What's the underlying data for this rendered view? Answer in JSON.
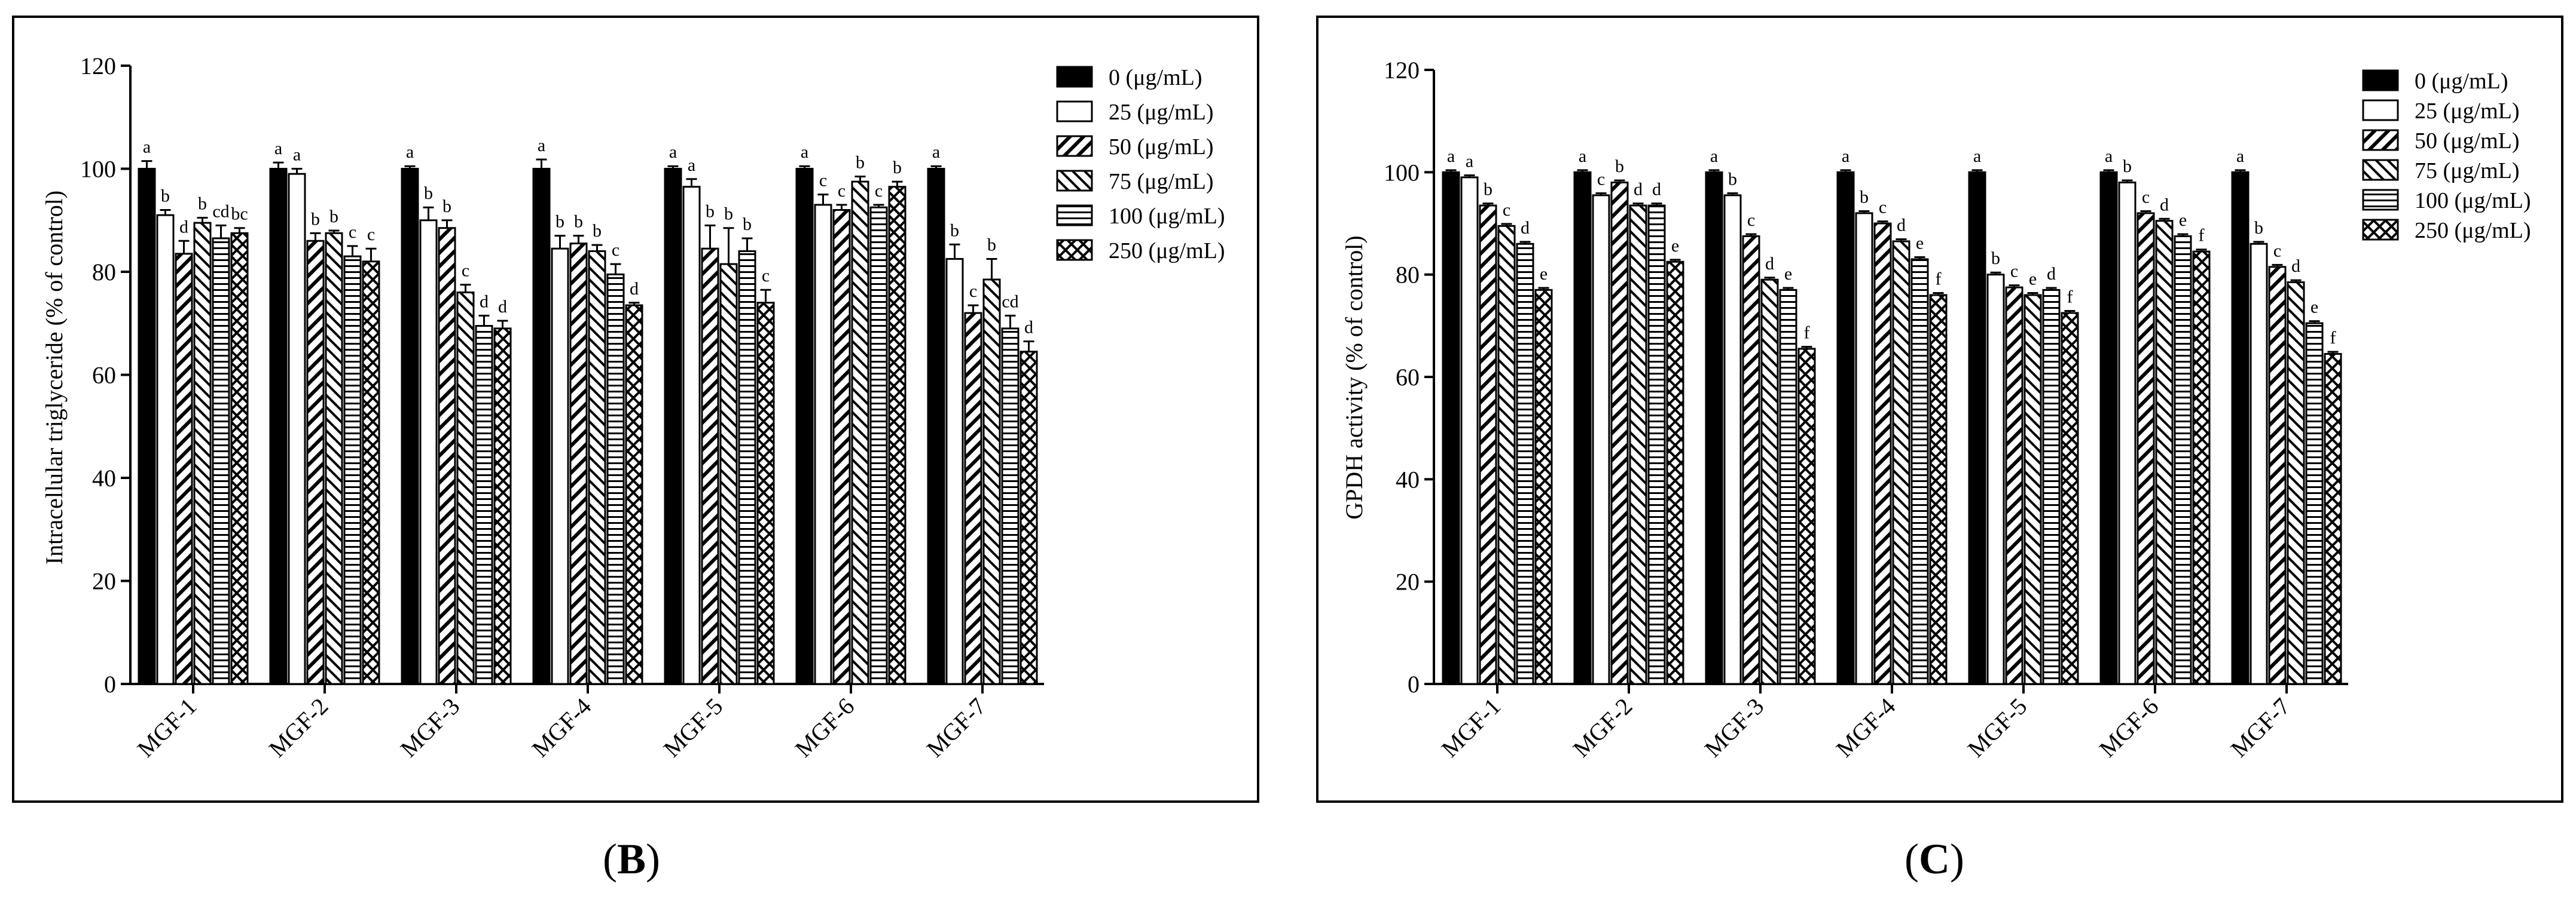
{
  "figure": {
    "background": "#ffffff",
    "ink": "#000000"
  },
  "chart_data": [
    {
      "type": "bar",
      "panel_label": "(B)",
      "panel_letter": "B",
      "ylabel": "Intracellular triglyceride (% of control)",
      "xlabel": "",
      "ylim": [
        0,
        120
      ],
      "yticks": [
        0,
        20,
        40,
        60,
        80,
        100,
        120
      ],
      "grid": false,
      "legend_position": "top-right",
      "categories": [
        "MGF-1",
        "MGF-2",
        "MGF-3",
        "MGF-4",
        "MGF-5",
        "MGF-6",
        "MGF-7"
      ],
      "series": [
        {
          "name": "0 (μg/mL)",
          "pattern": "solid",
          "values": [
            100,
            100,
            100,
            100,
            100,
            100,
            100
          ],
          "errors": [
            1.5,
            1.2,
            0.5,
            1.8,
            0.5,
            0.5,
            0.5
          ],
          "letters": [
            "a",
            "a",
            "a",
            "a",
            "a",
            "a",
            "a"
          ]
        },
        {
          "name": "25 (μg/mL)",
          "pattern": "open",
          "values": [
            91,
            99,
            90,
            84.5,
            96.5,
            93,
            82.5
          ],
          "errors": [
            1.0,
            1.0,
            2.5,
            2.5,
            1.5,
            2.0,
            2.8
          ],
          "letters": [
            "b",
            "a",
            "b",
            "b",
            "a",
            "c",
            "b"
          ]
        },
        {
          "name": "50 (μg/mL)",
          "pattern": "wide-diagonal",
          "values": [
            83.5,
            86,
            88.5,
            85.5,
            84.5,
            92,
            72
          ],
          "errors": [
            2.5,
            1.5,
            1.5,
            1.5,
            4.5,
            1.0,
            1.5
          ],
          "letters": [
            "d",
            "b",
            "b",
            "b",
            "b",
            "c",
            "c"
          ]
        },
        {
          "name": "75 (μg/mL)",
          "pattern": "back-diagonal",
          "values": [
            89.5,
            87.5,
            76,
            84,
            81.5,
            97.5,
            78.5
          ],
          "errors": [
            1.0,
            0.5,
            1.5,
            1.2,
            7.0,
            1.0,
            4.0
          ],
          "letters": [
            "b",
            "b",
            "c",
            "b",
            "b",
            "b",
            "b"
          ]
        },
        {
          "name": "100 (μg/mL)",
          "pattern": "horizontal",
          "values": [
            86.5,
            83,
            69.5,
            79.5,
            84,
            92.5,
            69
          ],
          "errors": [
            2.5,
            2.0,
            2.0,
            2.0,
            2.5,
            0.5,
            2.5
          ],
          "letters": [
            "cd",
            "c",
            "d",
            "c",
            "b",
            "c",
            "cd"
          ]
        },
        {
          "name": "250 (μg/mL)",
          "pattern": "crosshatch",
          "values": [
            87.5,
            82,
            69,
            73.5,
            74,
            96.5,
            64.5
          ],
          "errors": [
            1.0,
            2.5,
            1.5,
            0.5,
            2.5,
            1.0,
            2.0
          ],
          "letters": [
            "bc",
            "c",
            "d",
            "d",
            "c",
            "b",
            "d"
          ]
        }
      ]
    },
    {
      "type": "bar",
      "panel_label": "(C)",
      "panel_letter": "C",
      "ylabel": "GPDH activity (% of control)",
      "xlabel": "",
      "ylim": [
        0,
        120
      ],
      "yticks": [
        0,
        20,
        40,
        60,
        80,
        100,
        120
      ],
      "grid": false,
      "legend_position": "top-right",
      "categories": [
        "MGF-1",
        "MGF-2",
        "MGF-3",
        "MGF-4",
        "MGF-5",
        "MGF-6",
        "MGF-7"
      ],
      "series": [
        {
          "name": "0 (μg/mL)",
          "pattern": "solid",
          "values": [
            100,
            100,
            100,
            100,
            100,
            100,
            100
          ],
          "errors": [
            0.4,
            0.4,
            0.4,
            0.4,
            0.4,
            0.4,
            0.4
          ],
          "letters": [
            "a",
            "a",
            "a",
            "a",
            "a",
            "a",
            "a"
          ]
        },
        {
          "name": "25 (μg/mL)",
          "pattern": "open",
          "values": [
            99,
            95.5,
            95.5,
            92,
            80,
            98,
            86
          ],
          "errors": [
            0.4,
            0.4,
            0.4,
            0.4,
            0.4,
            0.4,
            0.4
          ],
          "letters": [
            "a",
            "c",
            "b",
            "b",
            "b",
            "b",
            "b"
          ]
        },
        {
          "name": "50 (μg/mL)",
          "pattern": "wide-diagonal",
          "values": [
            93.5,
            98,
            87.5,
            90,
            77.5,
            92,
            81.5
          ],
          "errors": [
            0.4,
            0.4,
            0.4,
            0.4,
            0.4,
            0.4,
            0.4
          ],
          "letters": [
            "b",
            "b",
            "c",
            "c",
            "c",
            "c",
            "c"
          ]
        },
        {
          "name": "75 (μg/mL)",
          "pattern": "back-diagonal",
          "values": [
            89.5,
            93.5,
            79,
            86.5,
            76,
            90.5,
            78.5
          ],
          "errors": [
            0.4,
            0.4,
            0.4,
            0.4,
            0.4,
            0.4,
            0.4
          ],
          "letters": [
            "c",
            "d",
            "d",
            "d",
            "e",
            "d",
            "d"
          ]
        },
        {
          "name": "100 (μg/mL)",
          "pattern": "horizontal",
          "values": [
            86,
            93.5,
            77,
            83,
            77,
            87.5,
            70.5
          ],
          "errors": [
            0.4,
            0.4,
            0.4,
            0.4,
            0.4,
            0.4,
            0.4
          ],
          "letters": [
            "d",
            "d",
            "e",
            "e",
            "d",
            "e",
            "e"
          ]
        },
        {
          "name": "250 (μg/mL)",
          "pattern": "crosshatch",
          "values": [
            77,
            82.5,
            65.5,
            76,
            72.5,
            84.5,
            64.5
          ],
          "errors": [
            0.4,
            0.4,
            0.4,
            0.4,
            0.4,
            0.4,
            0.4
          ],
          "letters": [
            "e",
            "e",
            "f",
            "f",
            "f",
            "f",
            "f"
          ]
        }
      ]
    }
  ]
}
